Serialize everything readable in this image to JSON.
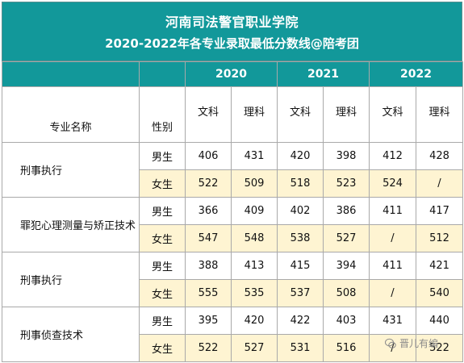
{
  "title": {
    "line1": "河南司法警官职业学院",
    "line2": "2020-2022年各专业录取最低分数线@陪考团"
  },
  "header": {
    "years": [
      "2020",
      "2021",
      "2022"
    ],
    "subjects": [
      "文科",
      "理科"
    ],
    "major_label": "专业名称",
    "gender_label": "性别"
  },
  "rows": [
    {
      "major": "刑事执行",
      "gender": "男生",
      "values": [
        "406",
        "431",
        "420",
        "398",
        "412",
        "428"
      ]
    },
    {
      "major": "",
      "gender": "女生",
      "values": [
        "522",
        "509",
        "518",
        "523",
        "524",
        "/"
      ]
    },
    {
      "major": "罪犯心理测量与矫正技术",
      "gender": "男生",
      "values": [
        "366",
        "409",
        "402",
        "386",
        "411",
        "417"
      ]
    },
    {
      "major": "",
      "gender": "女生",
      "values": [
        "547",
        "548",
        "538",
        "527",
        "/",
        "512"
      ]
    },
    {
      "major": "刑事执行",
      "gender": "男生",
      "values": [
        "388",
        "413",
        "415",
        "394",
        "411",
        "421"
      ]
    },
    {
      "major": "",
      "gender": "女生",
      "values": [
        "555",
        "535",
        "537",
        "508",
        "/",
        "540"
      ]
    },
    {
      "major": "刑事侦查技术",
      "gender": "男生",
      "values": [
        "395",
        "420",
        "422",
        "403",
        "431",
        "440"
      ]
    },
    {
      "major": "",
      "gender": "女生",
      "values": [
        "522",
        "527",
        "531",
        "516",
        "/",
        "522"
      ]
    }
  ],
  "watermark": {
    "text": "晋儿有编",
    "icon": "wechat-icon"
  }
}
